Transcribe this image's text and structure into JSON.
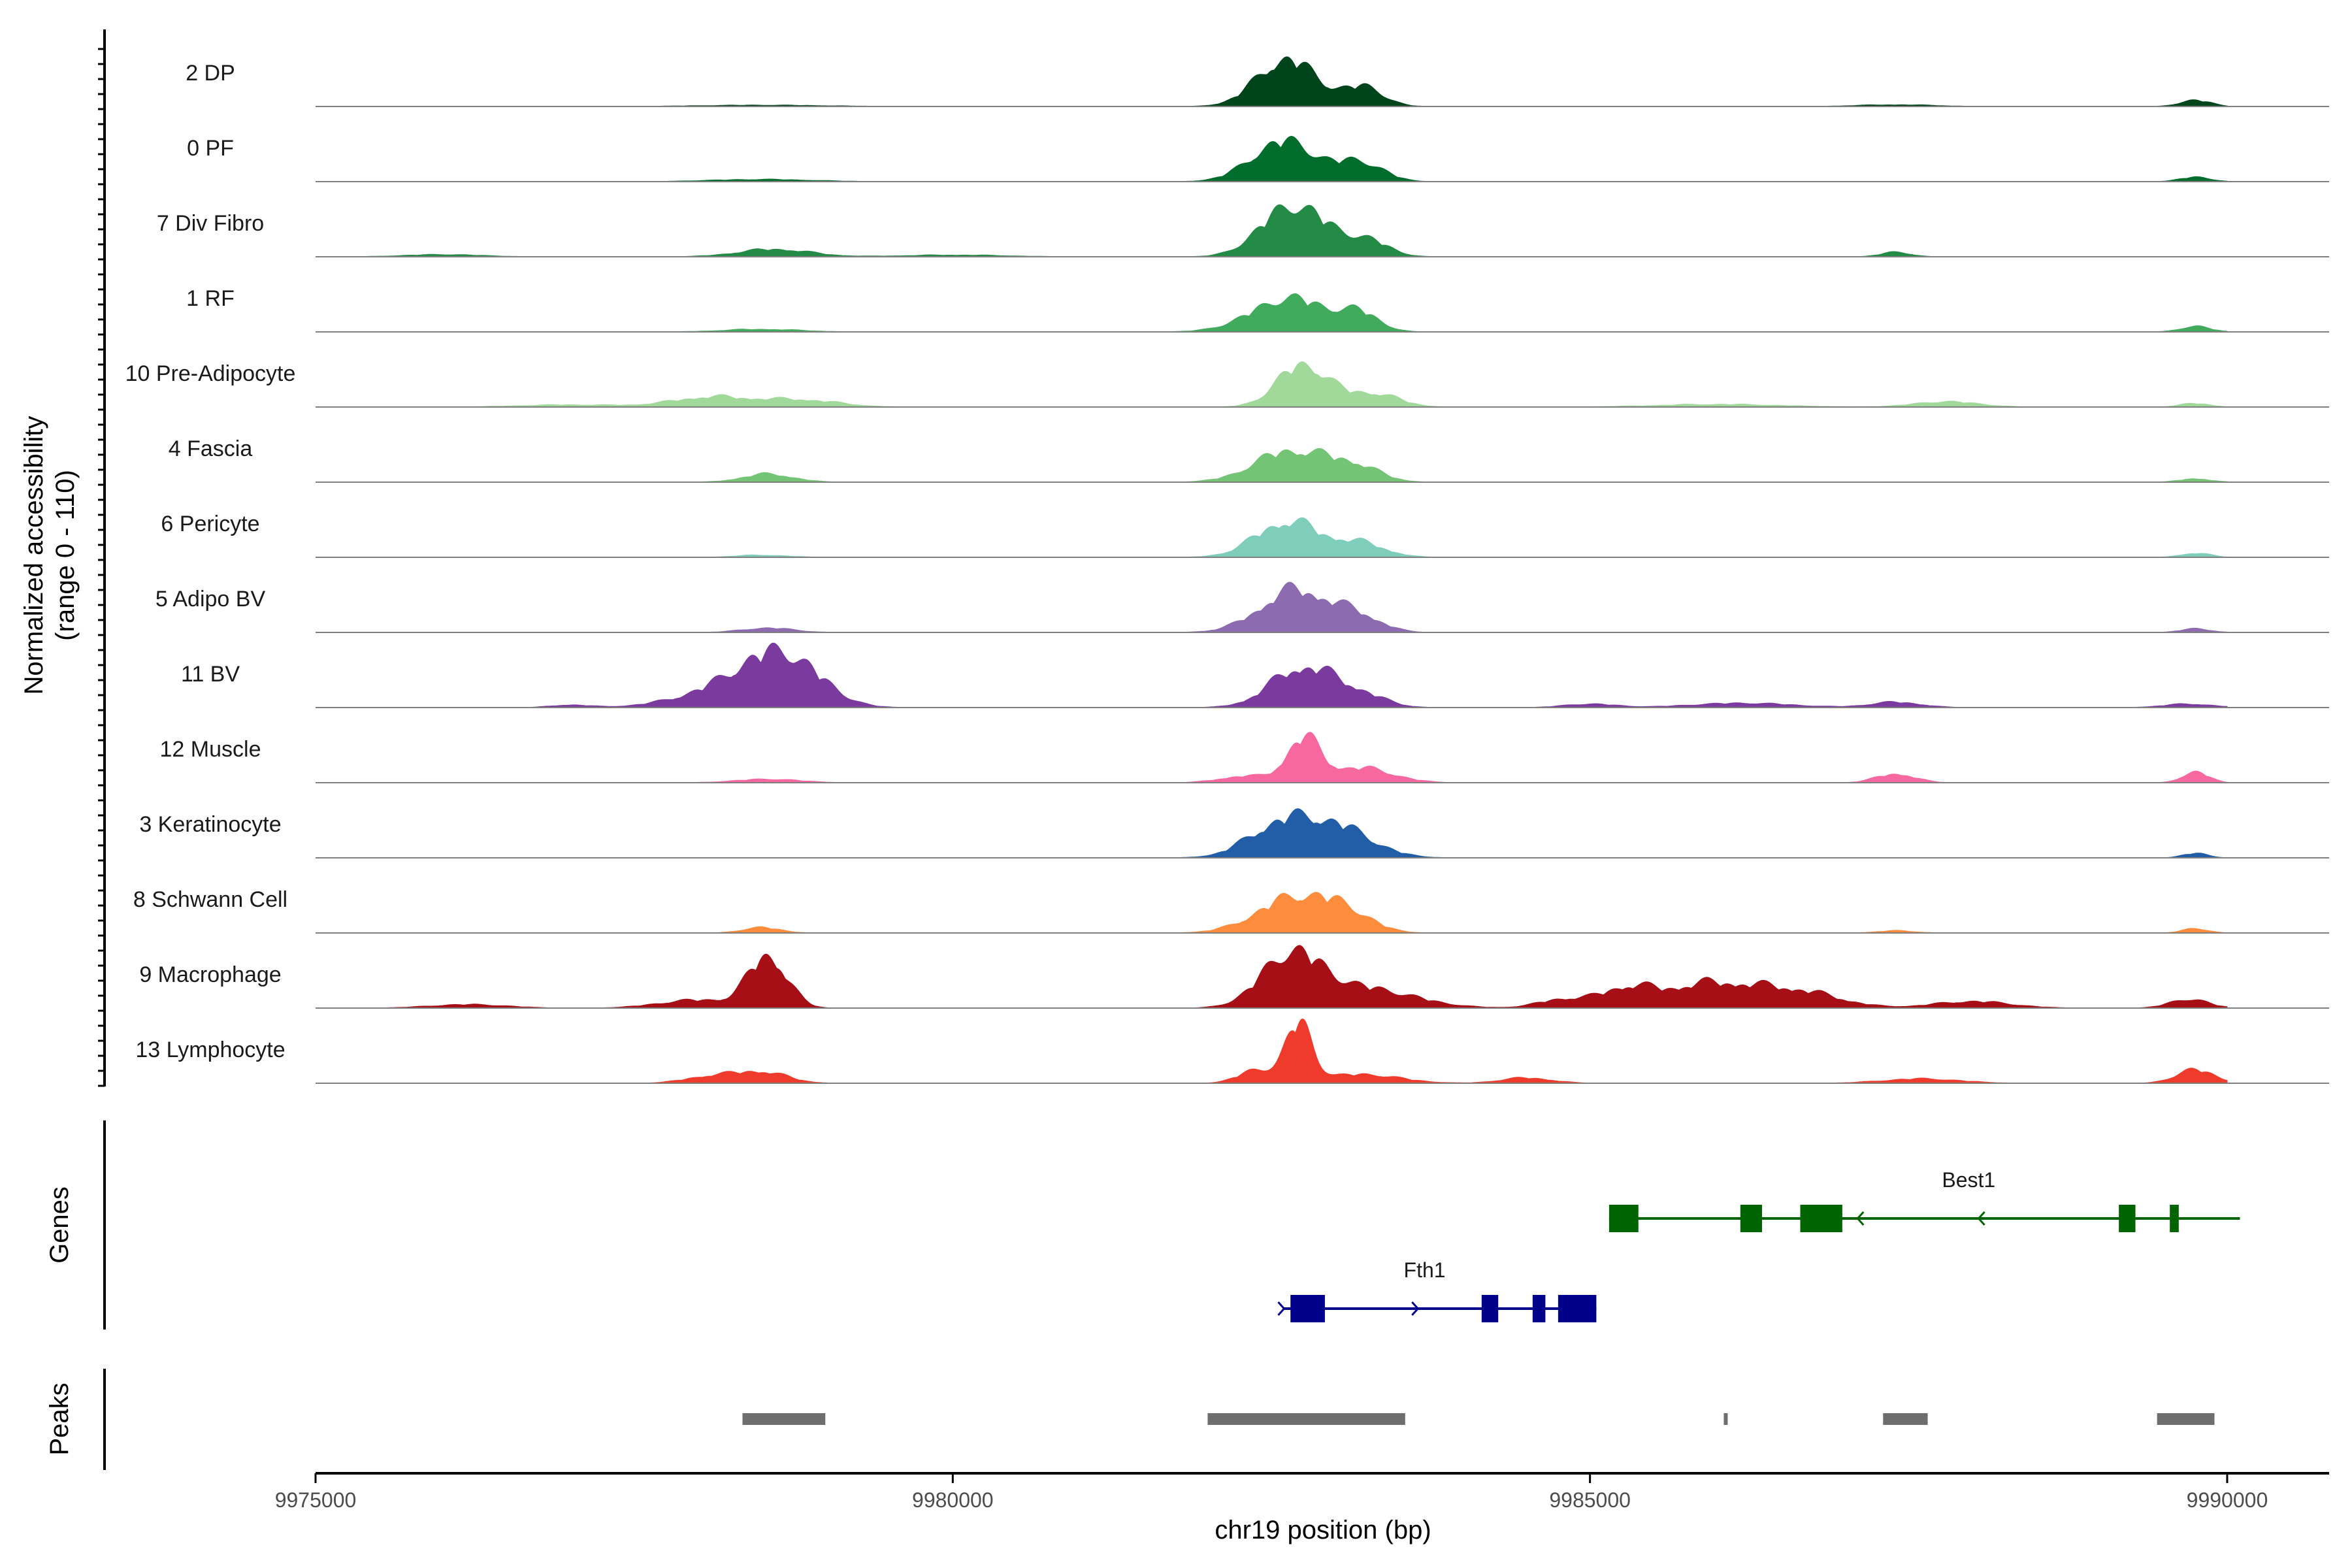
{
  "chart_data": {
    "type": "area",
    "title": "",
    "ylabel_line1": "Normalized accessibility",
    "ylabel_line2": "(range 0 - 110)",
    "y_range": [
      0,
      110
    ],
    "xlabel": "chr19 position (bp)",
    "xlim": [
      9975000,
      9990800
    ],
    "x_ticks": [
      {
        "value": 9975000,
        "label": "9975000"
      },
      {
        "value": 9980000,
        "label": "9980000"
      },
      {
        "value": 9985000,
        "label": "9985000"
      },
      {
        "value": 9990000,
        "label": "9990000"
      }
    ],
    "tracks": [
      {
        "name": "2 DP",
        "color": "#00441b",
        "peaks": [
          [
            9982620,
            106,
            230
          ],
          [
            9983220,
            42,
            160
          ],
          [
            9978500,
            3,
            500
          ],
          [
            9989750,
            14,
            120
          ],
          [
            9987400,
            4,
            300
          ]
        ]
      },
      {
        "name": "0 PF",
        "color": "#006d2c",
        "peaks": [
          [
            9982600,
            90,
            250
          ],
          [
            9983200,
            42,
            180
          ],
          [
            9978500,
            5,
            400
          ],
          [
            9989750,
            10,
            120
          ]
        ]
      },
      {
        "name": "7 Div Fibro",
        "color": "#238b45",
        "peaks": [
          [
            9982620,
            95,
            230
          ],
          [
            9982950,
            40,
            250
          ],
          [
            9983300,
            22,
            150
          ],
          [
            9978600,
            17,
            280
          ],
          [
            9976000,
            5,
            300
          ],
          [
            9987400,
            10,
            120
          ],
          [
            9980000,
            4,
            400
          ]
        ]
      },
      {
        "name": "1 RF",
        "color": "#41ab5d",
        "peaks": [
          [
            9982650,
            75,
            300
          ],
          [
            9983200,
            35,
            150
          ],
          [
            9978500,
            6,
            300
          ],
          [
            9989750,
            12,
            120
          ]
        ]
      },
      {
        "name": "10 Pre-Adipocyte",
        "color": "#a1d99b",
        "peaks": [
          [
            9982750,
            95,
            200
          ],
          [
            9983300,
            30,
            200
          ],
          [
            9978100,
            22,
            300
          ],
          [
            9978800,
            16,
            300
          ],
          [
            9977000,
            5,
            400
          ],
          [
            9987800,
            12,
            250
          ],
          [
            9986000,
            6,
            500
          ],
          [
            9989750,
            8,
            120
          ]
        ]
      },
      {
        "name": "4 Fascia",
        "color": "#74c476",
        "peaks": [
          [
            9982650,
            70,
            280
          ],
          [
            9983150,
            33,
            200
          ],
          [
            9978550,
            18,
            200
          ],
          [
            9989750,
            8,
            120
          ]
        ]
      },
      {
        "name": "6 Pericyte",
        "color": "#7fcdbb",
        "peaks": [
          [
            9982630,
            80,
            250
          ],
          [
            9983200,
            30,
            200
          ],
          [
            9978500,
            5,
            200
          ],
          [
            9989750,
            9,
            120
          ]
        ]
      },
      {
        "name": "5 Adipo BV",
        "color": "#8c6bb1",
        "peaks": [
          [
            9982700,
            95,
            280
          ],
          [
            9983200,
            28,
            180
          ],
          [
            9978550,
            10,
            200
          ],
          [
            9989750,
            8,
            120
          ]
        ]
      },
      {
        "name": "11 BV",
        "color": "#7a3a9e",
        "peaks": [
          [
            9978550,
            85,
            300
          ],
          [
            9978800,
            45,
            250
          ],
          [
            9978100,
            25,
            350
          ],
          [
            9982750,
            90,
            250
          ],
          [
            9983200,
            25,
            200
          ],
          [
            9987400,
            12,
            200
          ],
          [
            9986200,
            10,
            400
          ],
          [
            9985000,
            8,
            200
          ],
          [
            9989700,
            8,
            200
          ],
          [
            9977000,
            6,
            150
          ]
        ]
      },
      {
        "name": "12 Muscle",
        "color": "#f768a1",
        "peaks": [
          [
            9982750,
            95,
            130
          ],
          [
            9983200,
            33,
            250
          ],
          [
            9982300,
            15,
            200
          ],
          [
            9978550,
            8,
            250
          ],
          [
            9987400,
            20,
            150
          ],
          [
            9989750,
            25,
            100
          ]
        ]
      },
      {
        "name": "3 Keratinocyte",
        "color": "#225ea8",
        "peaks": [
          [
            9982550,
            65,
            250
          ],
          [
            9983000,
            68,
            280
          ],
          [
            9989750,
            10,
            100
          ]
        ]
      },
      {
        "name": "8 Schwann Cell",
        "color": "#fd8d3c",
        "peaks": [
          [
            9982700,
            80,
            300
          ],
          [
            9983100,
            30,
            200
          ],
          [
            9978500,
            12,
            150
          ],
          [
            9989750,
            10,
            100
          ],
          [
            9987400,
            5,
            150
          ]
        ]
      },
      {
        "name": "9 Macrophage",
        "color": "#a50f15",
        "peaks": [
          [
            9978550,
            115,
            150
          ],
          [
            9978000,
            18,
            300
          ],
          [
            9982650,
            110,
            230
          ],
          [
            9983200,
            45,
            400
          ],
          [
            9985300,
            45,
            200
          ],
          [
            9985800,
            35,
            250
          ],
          [
            9986200,
            38,
            300
          ],
          [
            9986700,
            30,
            300
          ],
          [
            9984800,
            20,
            200
          ],
          [
            9988000,
            15,
            300
          ],
          [
            9989700,
            20,
            150
          ],
          [
            9976200,
            8,
            300
          ]
        ]
      },
      {
        "name": "13 Lymphocyte",
        "color": "#ef3b2c",
        "peaks": [
          [
            9982720,
            130,
            100
          ],
          [
            9982400,
            30,
            150
          ],
          [
            9983200,
            20,
            300
          ],
          [
            9978500,
            25,
            200
          ],
          [
            9978100,
            15,
            200
          ],
          [
            9989750,
            30,
            150
          ],
          [
            9987600,
            10,
            300
          ],
          [
            9984500,
            12,
            200
          ]
        ]
      }
    ],
    "genes": [
      {
        "name": "Best1",
        "color": "#006400",
        "start": 9985150,
        "end": 9990100,
        "strand": "-",
        "exons": [
          [
            9985150,
            9985380
          ],
          [
            9986180,
            9986350
          ],
          [
            9986650,
            9986980
          ],
          [
            9989150,
            9989280
          ],
          [
            9989550,
            9989620
          ]
        ],
        "arrows": [
          9987100,
          9988050
        ]
      },
      {
        "name": "Fth1",
        "color": "#00008b",
        "start": 9982600,
        "end": 9985050,
        "strand": "+",
        "exons": [
          [
            9982650,
            9982920
          ],
          [
            9984150,
            9984280
          ],
          [
            9984550,
            9984650
          ],
          [
            9984750,
            9985050
          ]
        ],
        "arrows": [
          9982600,
          9983650
        ]
      }
    ],
    "peak_regions": [
      [
        9978350,
        9979000
      ],
      [
        9982000,
        9983550
      ],
      [
        9986050,
        9986080
      ],
      [
        9987300,
        9987650
      ],
      [
        9989450,
        9989900
      ]
    ],
    "genes_label": "Genes",
    "peaks_label": "Peaks",
    "peak_color": "#6e6e6e",
    "baseline_color": "#7f7f7f",
    "legend": "none",
    "grid": false
  }
}
